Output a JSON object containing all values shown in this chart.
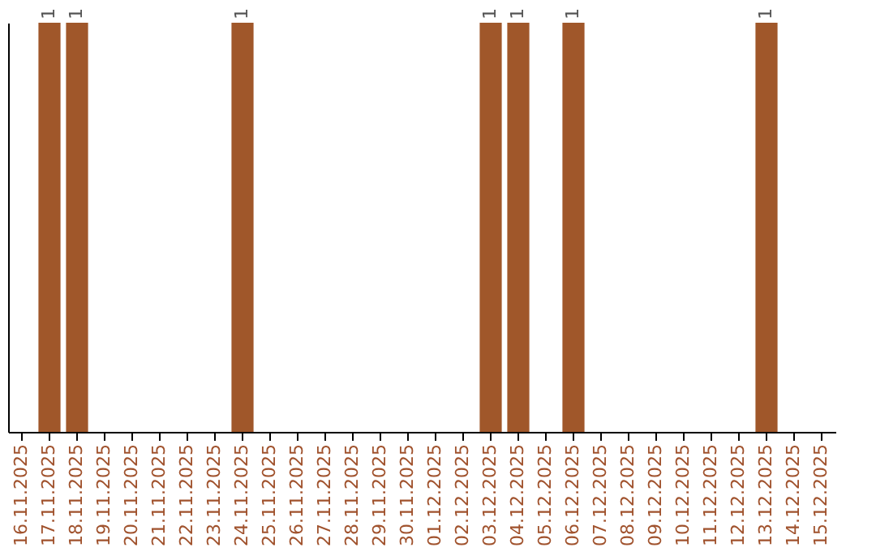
{
  "chart_data": {
    "type": "bar",
    "categories": [
      "16.11.2025",
      "17.11.2025",
      "18.11.2025",
      "19.11.2025",
      "20.11.2025",
      "21.11.2025",
      "22.11.2025",
      "23.11.2025",
      "24.11.2025",
      "25.11.2025",
      "26.11.2025",
      "27.11.2025",
      "28.11.2025",
      "29.11.2025",
      "30.11.2025",
      "01.12.2025",
      "02.12.2025",
      "03.12.2025",
      "04.12.2025",
      "05.12.2025",
      "06.12.2025",
      "07.12.2025",
      "08.12.2025",
      "09.12.2025",
      "10.12.2025",
      "11.12.2025",
      "12.12.2025",
      "13.12.2025",
      "14.12.2025",
      "15.12.2025"
    ],
    "values": [
      0,
      1,
      1,
      0,
      0,
      0,
      0,
      0,
      1,
      0,
      0,
      0,
      0,
      0,
      0,
      0,
      0,
      1,
      1,
      0,
      1,
      0,
      0,
      0,
      0,
      0,
      0,
      1,
      0,
      0
    ],
    "value_labels": [
      null,
      "1",
      "1",
      null,
      null,
      null,
      null,
      null,
      "1",
      null,
      null,
      null,
      null,
      null,
      null,
      null,
      null,
      "1",
      "1",
      null,
      "1",
      null,
      null,
      null,
      null,
      null,
      null,
      "1",
      null,
      null
    ],
    "color": "#a0572a",
    "ylim": [
      0,
      1
    ],
    "tick_labels": "x",
    "grid": false
  }
}
